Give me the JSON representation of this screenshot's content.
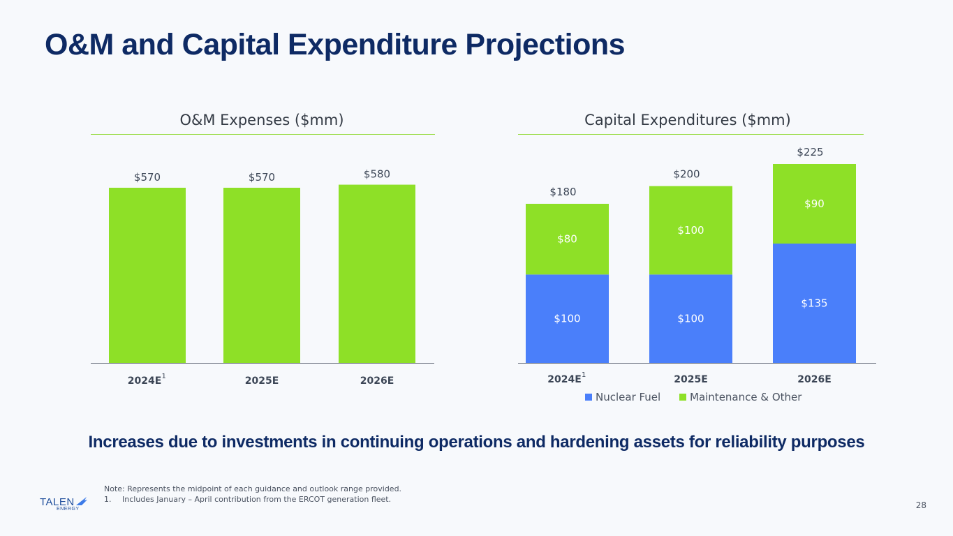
{
  "slide": {
    "title": "O&M and Capital Expenditure Projections",
    "headline": "Increases due to investments in continuing operations and hardening assets for reliability purposes",
    "note": "Note: Represents the midpoint of each guidance and outlook range provided.",
    "footnote_num": "1.",
    "footnote_text": "Includes January – April contribution from the ERCOT generation fleet.",
    "page_number": "28",
    "logo_word": "TALEN",
    "logo_sub": "ENERGY"
  },
  "colors": {
    "green": "#8ee027",
    "blue": "#4a7ffa",
    "navy": "#0e2a64"
  },
  "chart_data": [
    {
      "type": "bar",
      "title": "O&M Expenses ($mm)",
      "categories": [
        "2024E",
        "2025E",
        "2026E"
      ],
      "category_superscripts": [
        "1",
        "",
        ""
      ],
      "values": [
        570,
        570,
        580
      ],
      "value_labels": [
        "$570",
        "$570",
        "$580"
      ],
      "ylim": [
        0,
        580
      ],
      "xlabel": "",
      "ylabel": ""
    },
    {
      "type": "bar",
      "stacked": true,
      "title": "Capital Expenditures ($mm)",
      "categories": [
        "2024E",
        "2025E",
        "2026E"
      ],
      "category_superscripts": [
        "1",
        "",
        ""
      ],
      "series": [
        {
          "name": "Nuclear Fuel",
          "values": [
            100,
            100,
            135
          ],
          "labels": [
            "$100",
            "$100",
            "$135"
          ],
          "color": "#4a7ffa"
        },
        {
          "name": "Maintenance & Other",
          "values": [
            80,
            100,
            90
          ],
          "labels": [
            "$80",
            "$100",
            "$90"
          ],
          "color": "#8ee027"
        }
      ],
      "totals": [
        180,
        200,
        225
      ],
      "total_labels": [
        "$180",
        "$200",
        "$225"
      ],
      "ylim": [
        0,
        225
      ],
      "legend_position": "bottom-center"
    }
  ]
}
